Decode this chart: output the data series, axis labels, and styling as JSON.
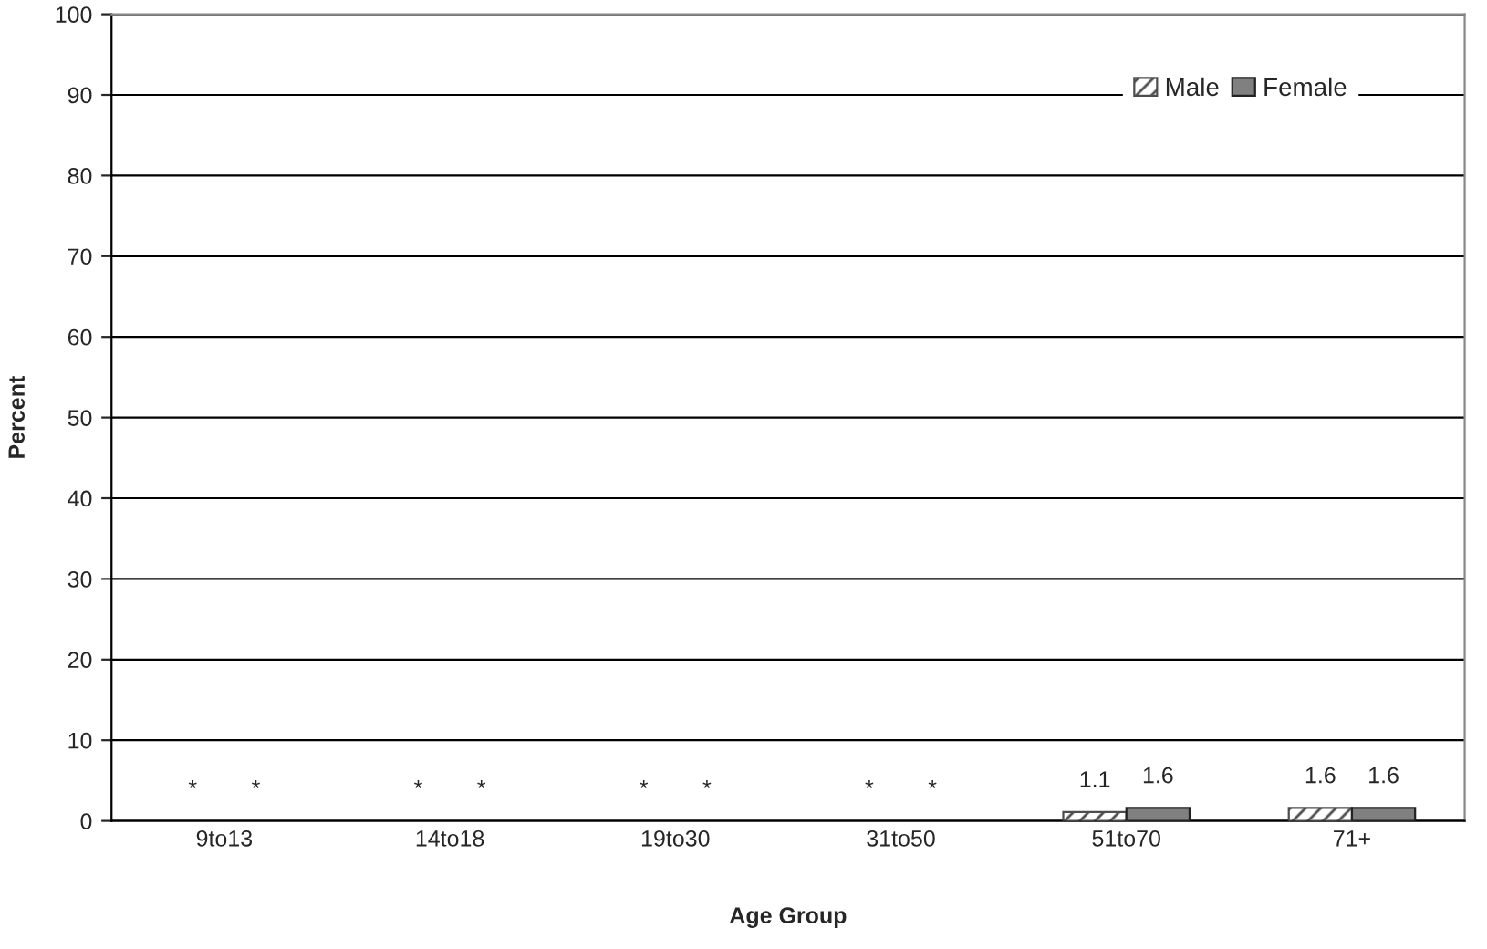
{
  "chart_data": {
    "type": "bar",
    "xlabel": "Age Group",
    "ylabel": "Percent",
    "categories": [
      "9to13",
      "14to18",
      "19to30",
      "31to50",
      "51to70",
      "71+"
    ],
    "series": [
      {
        "name": "Male",
        "color": "#4d4d4d",
        "values": [
          null,
          null,
          null,
          null,
          1.1,
          1.6
        ],
        "value_labels": [
          "*",
          "*",
          "*",
          "*",
          "1.1",
          "1.6"
        ]
      },
      {
        "name": "Female",
        "color": "#808080",
        "values": [
          null,
          null,
          null,
          null,
          1.6,
          1.6
        ],
        "value_labels": [
          "*",
          "*",
          "*",
          "*",
          "1.6",
          "1.6"
        ]
      }
    ],
    "ylim": [
      0,
      100
    ],
    "yticks": [
      0,
      10,
      20,
      30,
      40,
      50,
      60,
      70,
      80,
      90,
      100
    ],
    "grid": "y",
    "legend": "top right"
  }
}
